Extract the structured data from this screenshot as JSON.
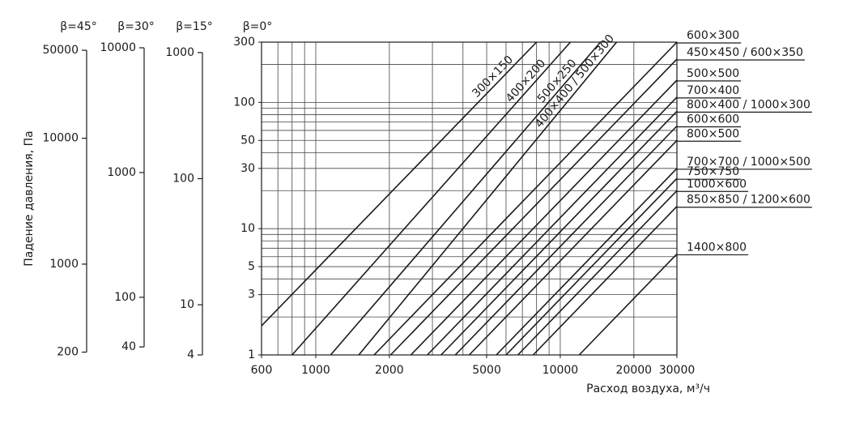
{
  "chart_data": {
    "type": "line",
    "x_label": "Расход воздуха, м³/ч",
    "y_label": "Падение давления, Па",
    "scale_label": "β=0°",
    "xlim": [
      600,
      30000
    ],
    "ylim": [
      1,
      300
    ],
    "log_x": true,
    "log_y": true,
    "xticks": [
      600,
      1000,
      2000,
      5000,
      10000,
      20000,
      30000
    ],
    "xgrid": [
      600,
      700,
      800,
      900,
      1000,
      2000,
      3000,
      4000,
      5000,
      6000,
      7000,
      8000,
      9000,
      10000,
      20000,
      30000
    ],
    "yticks": [
      1,
      3,
      5,
      10,
      30,
      50,
      100,
      300
    ],
    "ygrid": [
      1,
      2,
      3,
      4,
      5,
      6,
      7,
      8,
      9,
      10,
      20,
      30,
      40,
      50,
      60,
      70,
      80,
      90,
      100,
      200,
      300
    ],
    "color": "#1a1a1a",
    "series": [
      {
        "name": "300×150",
        "x": [
          600,
          8000
        ],
        "values": [
          1.7,
          300
        ]
      },
      {
        "name": "400×200",
        "x": [
          800,
          11000
        ],
        "values": [
          1,
          300
        ]
      },
      {
        "name": "500×250",
        "x": [
          1150,
          14600
        ],
        "values": [
          1,
          300
        ]
      },
      {
        "name": "400×400 / 500×300",
        "x": [
          1500,
          17000
        ],
        "values": [
          1,
          300
        ]
      },
      {
        "name": "600×300",
        "x": [
          1732,
          30000
        ],
        "values": [
          1,
          300
        ]
      },
      {
        "name": "450×450 / 600×350",
        "x": [
          2023,
          30000
        ],
        "values": [
          1,
          220
        ]
      },
      {
        "name": "500×500",
        "x": [
          2449,
          30000
        ],
        "values": [
          1,
          150
        ]
      },
      {
        "name": "700×400",
        "x": [
          2860,
          30000
        ],
        "values": [
          1,
          110
        ]
      },
      {
        "name": "800×400 / 1000×300",
        "x": [
          3254,
          30000
        ],
        "values": [
          1,
          85
        ]
      },
      {
        "name": "600×600",
        "x": [
          3721,
          30000
        ],
        "values": [
          1,
          65
        ]
      },
      {
        "name": "800×500",
        "x": [
          4243,
          30000
        ],
        "values": [
          1,
          50
        ]
      },
      {
        "name": "700×700 / 1000×500",
        "x": [
          5477,
          30000
        ],
        "values": [
          1,
          30
        ]
      },
      {
        "name": "750×750",
        "x": [
          6000,
          30000
        ],
        "values": [
          1,
          25
        ]
      },
      {
        "name": "1000×600",
        "x": [
          6708,
          30000
        ],
        "values": [
          1,
          20
        ]
      },
      {
        "name": "850×850 / 1200×600",
        "x": [
          7746,
          30000
        ],
        "values": [
          1,
          15
        ]
      },
      {
        "name": "1400×800",
        "x": [
          11952,
          30000
        ],
        "values": [
          1,
          6.3
        ]
      }
    ],
    "scales": [
      {
        "label": "β=45°",
        "ylim": [
          190,
          58000
        ],
        "yticks": [
          200,
          1000,
          10000,
          50000
        ]
      },
      {
        "label": "β=30°",
        "ylim": [
          34.5,
          11100
        ],
        "yticks": [
          40,
          100,
          1000,
          10000
        ]
      },
      {
        "label": "β=15°",
        "ylim": [
          4,
          1210
        ],
        "yticks": [
          4,
          10,
          100,
          1000
        ]
      }
    ]
  }
}
